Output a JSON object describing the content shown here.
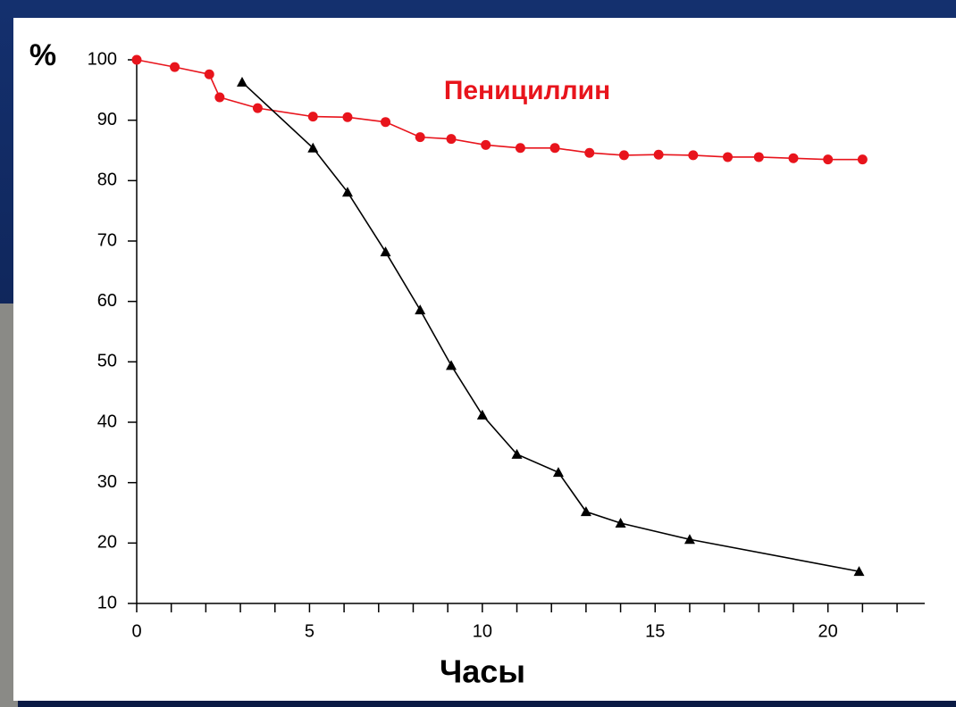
{
  "chart_data": {
    "type": "line",
    "y_label": "%",
    "x_label": "Часы",
    "xlim": [
      0,
      22.8
    ],
    "xticks": [
      0,
      5,
      10,
      15,
      20
    ],
    "xminorticks": [
      1,
      2,
      3,
      4,
      6,
      7,
      8,
      9,
      11,
      12,
      13,
      14,
      16,
      17,
      18,
      19,
      21,
      22
    ],
    "ylim": [
      10,
      100
    ],
    "yticks": [
      10,
      20,
      30,
      40,
      50,
      60,
      70,
      80,
      90,
      100
    ],
    "series": [
      {
        "name": "Пенициллин",
        "color": "#e8141c",
        "marker": "circle",
        "x": [
          0,
          1.1,
          2.1,
          2.4,
          3.5,
          5.1,
          6.1,
          7.2,
          8.2,
          9.1,
          10.1,
          11.1,
          12.1,
          13.1,
          14.1,
          15.1,
          16.1,
          17.1,
          18.0,
          19.0,
          20.0,
          21.0
        ],
        "values": [
          100,
          98.8,
          97.6,
          93.8,
          92.0,
          90.6,
          90.5,
          89.7,
          87.2,
          86.9,
          85.9,
          85.4,
          85.4,
          84.6,
          84.2,
          84.3,
          84.2,
          83.9,
          83.9,
          83.7,
          83.5,
          83.5
        ]
      },
      {
        "color": "#000000",
        "marker": "triangle",
        "x": [
          3.05,
          5.1,
          6.1,
          7.2,
          8.2,
          9.1,
          10.0,
          11.0,
          12.2,
          13.0,
          14.0,
          16.0,
          20.9
        ],
        "values": [
          96.3,
          85.4,
          78.1,
          68.2,
          58.6,
          49.4,
          41.2,
          34.7,
          31.7,
          25.2,
          23.3,
          20.6,
          15.3
        ]
      }
    ]
  }
}
